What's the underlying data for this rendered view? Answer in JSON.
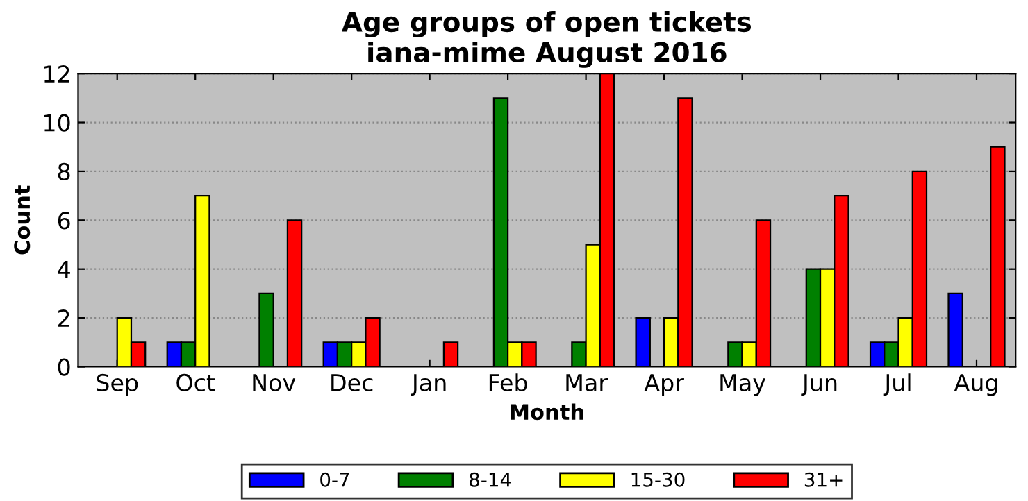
{
  "chart_data": {
    "type": "bar",
    "title": "Age groups of open tickets\niana-mime August 2016",
    "xlabel": "Month",
    "ylabel": "Count",
    "categories": [
      "Sep",
      "Oct",
      "Nov",
      "Dec",
      "Jan",
      "Feb",
      "Mar",
      "Apr",
      "May",
      "Jun",
      "Jul",
      "Aug"
    ],
    "series": [
      {
        "name": "0-7",
        "color": "#0000ff",
        "values": [
          0,
          1,
          0,
          1,
          0,
          0,
          0,
          2,
          0,
          0,
          1,
          3
        ]
      },
      {
        "name": "8-14",
        "color": "#008000",
        "values": [
          0,
          1,
          3,
          1,
          0,
          11,
          1,
          0,
          1,
          4,
          1,
          0
        ]
      },
      {
        "name": "15-30",
        "color": "#ffff00",
        "values": [
          2,
          7,
          0,
          1,
          0,
          1,
          5,
          2,
          1,
          4,
          2,
          0
        ]
      },
      {
        "name": "31+",
        "color": "#ff0000",
        "values": [
          1,
          0,
          6,
          2,
          1,
          1,
          12,
          11,
          6,
          7,
          8,
          9
        ]
      }
    ],
    "ylim": [
      0,
      12
    ],
    "yticks": [
      0,
      2,
      4,
      6,
      8,
      10,
      12
    ],
    "grid": "y",
    "legend": "bottom"
  }
}
